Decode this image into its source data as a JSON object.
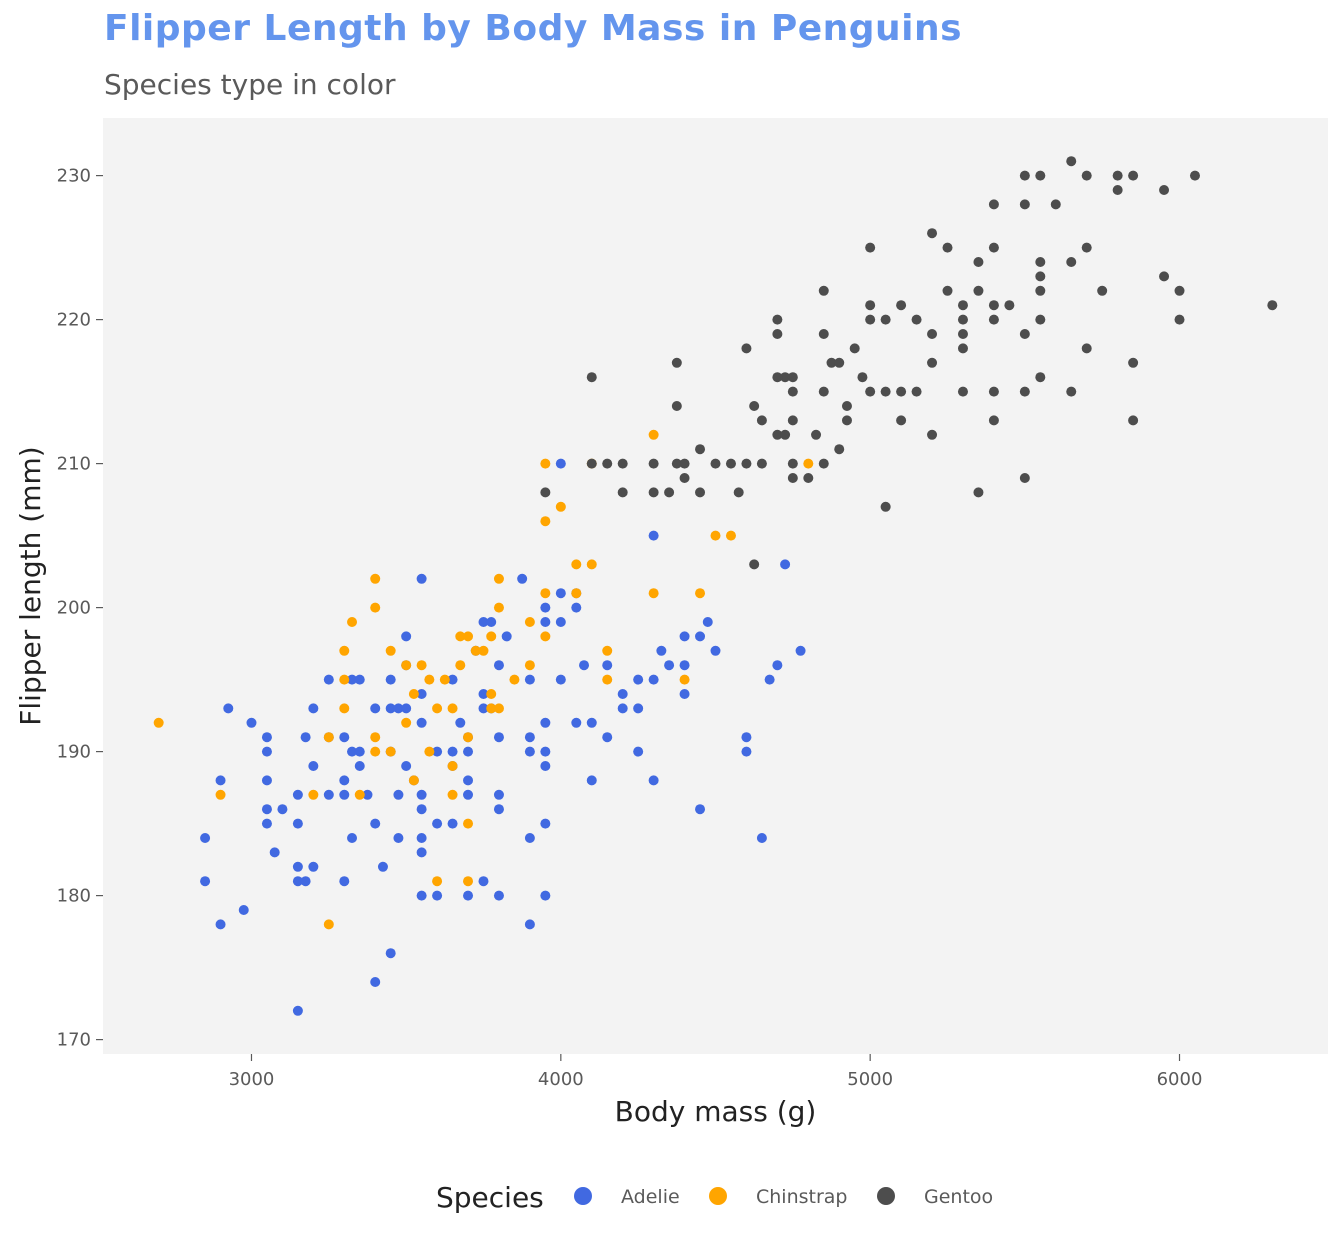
{
  "title": "Flipper Length by Body Mass in Penguins",
  "subtitle": "Species type in color",
  "colors": {
    "panel": "#f3f3f3",
    "Adelie": "#4169e1",
    "Chinstrap": "#ffa500",
    "Gentoo": "#4d4d4d",
    "title": "#6495ed"
  },
  "chart_data": {
    "type": "scatter",
    "title": "Flipper Length by Body Mass in Penguins",
    "subtitle": "Species type in color",
    "xlabel": "Body mass (g)",
    "ylabel": "Flipper length (mm)",
    "xlim": [
      2520,
      6480
    ],
    "ylim": [
      169,
      234
    ],
    "xticks": [
      3000,
      4000,
      5000,
      6000
    ],
    "yticks": [
      170,
      180,
      190,
      200,
      210,
      220,
      230
    ],
    "grid": false,
    "legend": {
      "title": "Species",
      "position": "bottom"
    },
    "series": [
      {
        "name": "Adelie",
        "color": "#4169e1",
        "points": [
          [
            3150,
            172
          ],
          [
            3400,
            174
          ],
          [
            3450,
            176
          ],
          [
            2900,
            178
          ],
          [
            3900,
            178
          ],
          [
            2975,
            179
          ],
          [
            3150,
            181
          ],
          [
            3300,
            181
          ],
          [
            3175,
            181
          ],
          [
            2850,
            181
          ],
          [
            3750,
            181
          ],
          [
            3700,
            180
          ],
          [
            3550,
            180
          ],
          [
            3600,
            180
          ],
          [
            3950,
            180
          ],
          [
            3800,
            180
          ],
          [
            3150,
            182
          ],
          [
            3200,
            182
          ],
          [
            3425,
            182
          ],
          [
            3550,
            183
          ],
          [
            3075,
            183
          ],
          [
            3900,
            184
          ],
          [
            2850,
            184
          ],
          [
            3325,
            184
          ],
          [
            3475,
            184
          ],
          [
            3550,
            184
          ],
          [
            4650,
            184
          ],
          [
            3050,
            185
          ],
          [
            3150,
            185
          ],
          [
            3400,
            185
          ],
          [
            3600,
            185
          ],
          [
            3650,
            185
          ],
          [
            3950,
            185
          ],
          [
            3050,
            186
          ],
          [
            3100,
            186
          ],
          [
            3550,
            186
          ],
          [
            3800,
            186
          ],
          [
            4450,
            186
          ],
          [
            3250,
            187
          ],
          [
            3300,
            187
          ],
          [
            3375,
            187
          ],
          [
            3475,
            187
          ],
          [
            3550,
            187
          ],
          [
            3700,
            187
          ],
          [
            3800,
            187
          ],
          [
            3150,
            187
          ],
          [
            2900,
            188
          ],
          [
            3050,
            188
          ],
          [
            3300,
            188
          ],
          [
            3525,
            188
          ],
          [
            3700,
            188
          ],
          [
            4100,
            188
          ],
          [
            4300,
            188
          ],
          [
            3200,
            189
          ],
          [
            3500,
            189
          ],
          [
            3350,
            189
          ],
          [
            3650,
            189
          ],
          [
            3950,
            189
          ],
          [
            3050,
            190
          ],
          [
            3325,
            190
          ],
          [
            3350,
            190
          ],
          [
            3450,
            190
          ],
          [
            3600,
            190
          ],
          [
            3650,
            190
          ],
          [
            3700,
            190
          ],
          [
            3900,
            190
          ],
          [
            3950,
            190
          ],
          [
            4250,
            190
          ],
          [
            4600,
            190
          ],
          [
            3050,
            191
          ],
          [
            3175,
            191
          ],
          [
            3300,
            191
          ],
          [
            3700,
            191
          ],
          [
            3800,
            191
          ],
          [
            3900,
            191
          ],
          [
            4150,
            191
          ],
          [
            4600,
            191
          ],
          [
            3250,
            191
          ],
          [
            3000,
            192
          ],
          [
            3550,
            192
          ],
          [
            3950,
            192
          ],
          [
            4050,
            192
          ],
          [
            4100,
            192
          ],
          [
            3675,
            192
          ],
          [
            2925,
            193
          ],
          [
            3200,
            193
          ],
          [
            3400,
            193
          ],
          [
            3450,
            193
          ],
          [
            3475,
            193
          ],
          [
            3500,
            193
          ],
          [
            3750,
            193
          ],
          [
            3775,
            193
          ],
          [
            4200,
            193
          ],
          [
            4250,
            193
          ],
          [
            3550,
            194
          ],
          [
            3750,
            194
          ],
          [
            4200,
            194
          ],
          [
            4400,
            194
          ],
          [
            3250,
            195
          ],
          [
            3325,
            195
          ],
          [
            3350,
            195
          ],
          [
            3450,
            195
          ],
          [
            3650,
            195
          ],
          [
            3900,
            195
          ],
          [
            4250,
            195
          ],
          [
            4300,
            195
          ],
          [
            4675,
            195
          ],
          [
            3500,
            196
          ],
          [
            3800,
            196
          ],
          [
            4075,
            196
          ],
          [
            4150,
            196
          ],
          [
            4350,
            196
          ],
          [
            4400,
            196
          ],
          [
            4700,
            196
          ],
          [
            4000,
            195
          ],
          [
            3725,
            197
          ],
          [
            4325,
            197
          ],
          [
            4500,
            197
          ],
          [
            4775,
            197
          ],
          [
            3500,
            198
          ],
          [
            3825,
            198
          ],
          [
            4400,
            198
          ],
          [
            4450,
            198
          ],
          [
            3750,
            199
          ],
          [
            3775,
            199
          ],
          [
            4000,
            199
          ],
          [
            4475,
            199
          ],
          [
            3950,
            199
          ],
          [
            4050,
            200
          ],
          [
            4050,
            201
          ],
          [
            4000,
            201
          ],
          [
            3875,
            202
          ],
          [
            3550,
            202
          ],
          [
            4725,
            203
          ],
          [
            4300,
            205
          ],
          [
            4000,
            210
          ],
          [
            3950,
            200
          ]
        ]
      },
      {
        "name": "Chinstrap",
        "color": "#ffa500",
        "points": [
          [
            3250,
            178
          ],
          [
            3600,
            181
          ],
          [
            3700,
            181
          ],
          [
            2900,
            187
          ],
          [
            3200,
            187
          ],
          [
            3350,
            187
          ],
          [
            3650,
            187
          ],
          [
            3700,
            185
          ],
          [
            3650,
            189
          ],
          [
            3525,
            188
          ],
          [
            3400,
            190
          ],
          [
            3450,
            190
          ],
          [
            3575,
            190
          ],
          [
            3400,
            191
          ],
          [
            3250,
            191
          ],
          [
            3700,
            191
          ],
          [
            2700,
            192
          ],
          [
            3500,
            192
          ],
          [
            3300,
            193
          ],
          [
            3600,
            193
          ],
          [
            3650,
            193
          ],
          [
            3775,
            193
          ],
          [
            3800,
            193
          ],
          [
            3525,
            194
          ],
          [
            3775,
            194
          ],
          [
            3300,
            195
          ],
          [
            3575,
            195
          ],
          [
            3625,
            195
          ],
          [
            3850,
            195
          ],
          [
            4150,
            195
          ],
          [
            4400,
            195
          ],
          [
            3500,
            196
          ],
          [
            3550,
            196
          ],
          [
            3675,
            196
          ],
          [
            3900,
            196
          ],
          [
            3450,
            197
          ],
          [
            3300,
            197
          ],
          [
            3725,
            197
          ],
          [
            3750,
            197
          ],
          [
            4150,
            197
          ],
          [
            3675,
            198
          ],
          [
            3700,
            198
          ],
          [
            3775,
            198
          ],
          [
            3950,
            198
          ],
          [
            3325,
            199
          ],
          [
            3900,
            199
          ],
          [
            3400,
            200
          ],
          [
            3800,
            200
          ],
          [
            3950,
            201
          ],
          [
            4300,
            201
          ],
          [
            4450,
            201
          ],
          [
            4050,
            201
          ],
          [
            3400,
            202
          ],
          [
            3800,
            202
          ],
          [
            4050,
            203
          ],
          [
            4100,
            203
          ],
          [
            4500,
            205
          ],
          [
            4550,
            205
          ],
          [
            3950,
            206
          ],
          [
            4000,
            207
          ],
          [
            3950,
            210
          ],
          [
            4100,
            210
          ],
          [
            4800,
            210
          ],
          [
            4300,
            212
          ]
        ]
      },
      {
        "name": "Gentoo",
        "color": "#4d4d4d",
        "points": [
          [
            4625,
            203
          ],
          [
            5050,
            207
          ],
          [
            5350,
            208
          ],
          [
            3950,
            208
          ],
          [
            4200,
            208
          ],
          [
            4300,
            208
          ],
          [
            4350,
            208
          ],
          [
            4450,
            208
          ],
          [
            4575,
            208
          ],
          [
            5500,
            209
          ],
          [
            4400,
            209
          ],
          [
            4750,
            209
          ],
          [
            4800,
            209
          ],
          [
            4650,
            210
          ],
          [
            4100,
            210
          ],
          [
            4150,
            210
          ],
          [
            4200,
            210
          ],
          [
            4300,
            210
          ],
          [
            4375,
            210
          ],
          [
            4400,
            210
          ],
          [
            4500,
            210
          ],
          [
            4550,
            210
          ],
          [
            4600,
            210
          ],
          [
            4750,
            210
          ],
          [
            4850,
            210
          ],
          [
            4450,
            211
          ],
          [
            4900,
            211
          ],
          [
            4825,
            212
          ],
          [
            4700,
            212
          ],
          [
            4725,
            212
          ],
          [
            5200,
            212
          ],
          [
            4650,
            213
          ],
          [
            4925,
            213
          ],
          [
            4750,
            213
          ],
          [
            5400,
            213
          ],
          [
            5850,
            213
          ],
          [
            5100,
            213
          ],
          [
            4375,
            214
          ],
          [
            4625,
            214
          ],
          [
            4925,
            214
          ],
          [
            4850,
            215
          ],
          [
            4750,
            215
          ],
          [
            5000,
            215
          ],
          [
            5050,
            215
          ],
          [
            5100,
            215
          ],
          [
            5150,
            215
          ],
          [
            5300,
            215
          ],
          [
            5400,
            215
          ],
          [
            5500,
            215
          ],
          [
            5650,
            215
          ],
          [
            4725,
            216
          ],
          [
            4750,
            216
          ],
          [
            4700,
            216
          ],
          [
            4975,
            216
          ],
          [
            4100,
            216
          ],
          [
            5550,
            216
          ],
          [
            4375,
            217
          ],
          [
            4875,
            217
          ],
          [
            4900,
            217
          ],
          [
            5200,
            217
          ],
          [
            5850,
            217
          ],
          [
            4600,
            218
          ],
          [
            4950,
            218
          ],
          [
            5300,
            218
          ],
          [
            5700,
            218
          ],
          [
            4850,
            219
          ],
          [
            5200,
            219
          ],
          [
            5300,
            219
          ],
          [
            5500,
            219
          ],
          [
            4700,
            219
          ],
          [
            5000,
            220
          ],
          [
            5050,
            220
          ],
          [
            5150,
            220
          ],
          [
            5400,
            220
          ],
          [
            5300,
            220
          ],
          [
            5550,
            220
          ],
          [
            6000,
            220
          ],
          [
            4700,
            220
          ],
          [
            4850,
            222
          ],
          [
            5400,
            221
          ],
          [
            5100,
            221
          ],
          [
            5300,
            221
          ],
          [
            5450,
            221
          ],
          [
            5000,
            221
          ],
          [
            6300,
            221
          ],
          [
            5750,
            222
          ],
          [
            5250,
            222
          ],
          [
            5350,
            222
          ],
          [
            5550,
            222
          ],
          [
            6000,
            222
          ],
          [
            5550,
            223
          ],
          [
            5950,
            223
          ],
          [
            5350,
            224
          ],
          [
            5550,
            224
          ],
          [
            5650,
            224
          ],
          [
            5000,
            225
          ],
          [
            5250,
            225
          ],
          [
            5400,
            225
          ],
          [
            5700,
            225
          ],
          [
            5200,
            226
          ],
          [
            5400,
            228
          ],
          [
            5500,
            228
          ],
          [
            5600,
            228
          ],
          [
            5800,
            229
          ],
          [
            5950,
            229
          ],
          [
            5500,
            230
          ],
          [
            5550,
            230
          ],
          [
            5700,
            230
          ],
          [
            5800,
            230
          ],
          [
            5850,
            230
          ],
          [
            6050,
            230
          ],
          [
            5650,
            231
          ]
        ]
      }
    ]
  }
}
